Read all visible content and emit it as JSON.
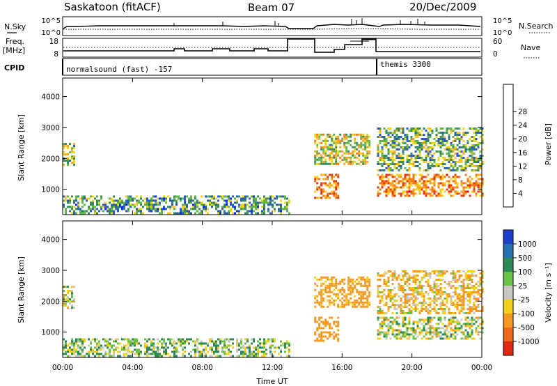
{
  "header": {
    "station": "Saskatoon (fitACF)",
    "beam": "Beam 07",
    "date": "20/Dec/2009"
  },
  "ops_panels": {
    "nsky_label": "N.Sky",
    "nsearch_label": "N.Search",
    "noise_ticks": [
      "10^5",
      "10^0"
    ],
    "freq_label_1": "Freq.",
    "freq_label_2": "[MHz]",
    "freq_ticks": [
      "18",
      "8"
    ],
    "nave_label": "Nave",
    "nave_ticks": [
      "60",
      "0"
    ],
    "cpid_label": "CPID",
    "cpid_segments": [
      {
        "name": "normalsound (fast) -157",
        "start": 0.0
      },
      {
        "name": "themis 3300",
        "start": 18.0
      }
    ]
  },
  "axes": {
    "xlabel": "Time UT",
    "x_ticks": [
      "00:00",
      "04:00",
      "08:00",
      "12:00",
      "16:00",
      "20:00",
      "00:00"
    ],
    "x_tick_hours": [
      0,
      4,
      8,
      12,
      16,
      20,
      24
    ],
    "xlim": [
      0,
      24
    ],
    "ylabel": "Slant Range [km]",
    "y_ticks": [
      "1000",
      "2000",
      "3000",
      "4000"
    ],
    "y_tick_values": [
      1000,
      2000,
      3000,
      4000
    ],
    "ylim": [
      180,
      4600
    ]
  },
  "power_scale": {
    "label": "Power [dB]",
    "ticks": [
      "4",
      "8",
      "12",
      "16",
      "20",
      "24",
      "28"
    ],
    "colors": [
      "#0a2cff",
      "#2b5dbf",
      "#3b8a5a",
      "#62b547",
      "#f2d21b",
      "#f6a623",
      "#f07a1e",
      "#e53a12",
      "#d70d0d"
    ]
  },
  "velocity_scale": {
    "label": "Velocity [m s⁻¹]",
    "ticks": [
      "1000",
      "500",
      "100",
      "25",
      "-25",
      "-100",
      "-500",
      "-1000"
    ],
    "colors": [
      "#1f3fc8",
      "#2a6fb0",
      "#2e8a55",
      "#6ac145",
      "#c8c8c0",
      "#f3d01d",
      "#f49a22",
      "#ee6a1c",
      "#e02a12"
    ]
  },
  "chart_data": [
    {
      "type": "heatmap",
      "title": "Power",
      "xlabel": "Time UT",
      "ylabel": "Slant Range [km]",
      "xlim": [
        0,
        24
      ],
      "ylim": [
        180,
        4600
      ],
      "colorbar_label": "Power [dB]",
      "regions": [
        {
          "t0": 0.0,
          "t1": 0.6,
          "r0": 1800,
          "r1": 2500,
          "value_db": 14
        },
        {
          "t0": 0.0,
          "t1": 13.0,
          "r0": 200,
          "r1": 800,
          "value_db": 10
        },
        {
          "t0": 14.4,
          "t1": 15.8,
          "r0": 700,
          "r1": 1500,
          "value_db": 22
        },
        {
          "t0": 14.4,
          "t1": 17.6,
          "r0": 1800,
          "r1": 2800,
          "value_db": 16
        },
        {
          "t0": 18.0,
          "t1": 24.0,
          "r0": 800,
          "r1": 1500,
          "value_db": 22
        },
        {
          "t0": 18.0,
          "t1": 24.0,
          "r0": 1600,
          "r1": 3000,
          "value_db": 12
        }
      ]
    },
    {
      "type": "heatmap",
      "title": "Velocity",
      "xlabel": "Time UT",
      "ylabel": "Slant Range [km]",
      "xlim": [
        0,
        24
      ],
      "ylim": [
        180,
        4600
      ],
      "colorbar_label": "Velocity [m s⁻¹]",
      "regions": [
        {
          "t0": 0.0,
          "t1": 0.6,
          "r0": 1800,
          "r1": 2500,
          "value_ms": 0
        },
        {
          "t0": 0.0,
          "t1": 13.0,
          "r0": 200,
          "r1": 800,
          "value_ms": 60
        },
        {
          "t0": 14.4,
          "t1": 15.8,
          "r0": 700,
          "r1": 1500,
          "value_ms": -300
        },
        {
          "t0": 14.4,
          "t1": 17.6,
          "r0": 1800,
          "r1": 2800,
          "value_ms": -200
        },
        {
          "t0": 18.0,
          "t1": 24.0,
          "r0": 800,
          "r1": 1500,
          "value_ms": 0
        },
        {
          "t0": 18.0,
          "t1": 24.0,
          "r0": 1600,
          "r1": 3000,
          "value_ms": -100
        }
      ]
    }
  ]
}
